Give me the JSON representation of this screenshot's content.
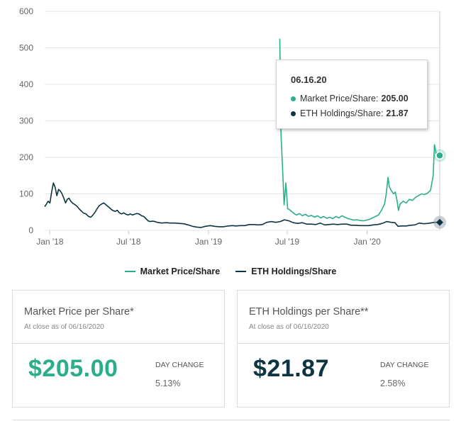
{
  "chart_data": {
    "type": "line",
    "title": "",
    "xlabel": "",
    "ylabel": "",
    "ylim": [
      0,
      600
    ],
    "yticks": [
      0,
      100,
      200,
      300,
      400,
      500,
      600
    ],
    "xlim": [
      "2017-12-20",
      "2020-06-16"
    ],
    "xticks": [
      {
        "label": "Jan '18",
        "date": "2018-01-01"
      },
      {
        "label": "Jul '18",
        "date": "2018-07-01"
      },
      {
        "label": "Jan '19",
        "date": "2019-01-01"
      },
      {
        "label": "Jul '19",
        "date": "2019-07-01"
      },
      {
        "label": "Jan '20",
        "date": "2020-01-01"
      }
    ],
    "grid": "horizontal",
    "legend_position": "bottom",
    "series": [
      {
        "name": "Market Price/Share",
        "color": "#2bae8a",
        "points": [
          [
            "2019-06-14",
            525
          ],
          [
            "2019-06-17",
            260
          ],
          [
            "2019-06-20",
            180
          ],
          [
            "2019-06-24",
            70
          ],
          [
            "2019-06-28",
            130
          ],
          [
            "2019-07-02",
            60
          ],
          [
            "2019-07-08",
            55
          ],
          [
            "2019-07-15",
            48
          ],
          [
            "2019-07-22",
            42
          ],
          [
            "2019-07-29",
            46
          ],
          [
            "2019-08-05",
            40
          ],
          [
            "2019-08-12",
            44
          ],
          [
            "2019-08-19",
            38
          ],
          [
            "2019-08-26",
            41
          ],
          [
            "2019-09-02",
            36
          ],
          [
            "2019-09-09",
            40
          ],
          [
            "2019-09-16",
            34
          ],
          [
            "2019-09-23",
            38
          ],
          [
            "2019-09-30",
            33
          ],
          [
            "2019-10-07",
            36
          ],
          [
            "2019-10-14",
            32
          ],
          [
            "2019-10-21",
            38
          ],
          [
            "2019-10-28",
            34
          ],
          [
            "2019-11-04",
            40
          ],
          [
            "2019-11-11",
            36
          ],
          [
            "2019-11-18",
            32
          ],
          [
            "2019-11-25",
            30
          ],
          [
            "2019-12-02",
            28
          ],
          [
            "2019-12-09",
            29
          ],
          [
            "2019-12-16",
            27
          ],
          [
            "2019-12-23",
            26
          ],
          [
            "2019-12-30",
            28
          ],
          [
            "2020-01-06",
            30
          ],
          [
            "2020-01-13",
            34
          ],
          [
            "2020-01-20",
            38
          ],
          [
            "2020-01-27",
            42
          ],
          [
            "2020-02-03",
            55
          ],
          [
            "2020-02-10",
            72
          ],
          [
            "2020-02-14",
            100
          ],
          [
            "2020-02-18",
            145
          ],
          [
            "2020-02-21",
            120
          ],
          [
            "2020-02-25",
            110
          ],
          [
            "2020-03-02",
            100
          ],
          [
            "2020-03-06",
            105
          ],
          [
            "2020-03-10",
            80
          ],
          [
            "2020-03-13",
            55
          ],
          [
            "2020-03-17",
            72
          ],
          [
            "2020-03-24",
            80
          ],
          [
            "2020-03-31",
            75
          ],
          [
            "2020-04-07",
            85
          ],
          [
            "2020-04-14",
            82
          ],
          [
            "2020-04-21",
            90
          ],
          [
            "2020-04-28",
            95
          ],
          [
            "2020-05-05",
            100
          ],
          [
            "2020-05-12",
            98
          ],
          [
            "2020-05-19",
            102
          ],
          [
            "2020-05-26",
            110
          ],
          [
            "2020-06-01",
            150
          ],
          [
            "2020-06-04",
            235
          ],
          [
            "2020-06-08",
            210
          ],
          [
            "2020-06-12",
            200
          ],
          [
            "2020-06-16",
            205
          ]
        ]
      },
      {
        "name": "ETH Holdings/Share",
        "color": "#0d3440",
        "points": [
          [
            "2017-12-20",
            65
          ],
          [
            "2017-12-24",
            72
          ],
          [
            "2017-12-28",
            80
          ],
          [
            "2018-01-01",
            75
          ],
          [
            "2018-01-05",
            105
          ],
          [
            "2018-01-09",
            130
          ],
          [
            "2018-01-13",
            118
          ],
          [
            "2018-01-17",
            95
          ],
          [
            "2018-01-21",
            112
          ],
          [
            "2018-01-25",
            108
          ],
          [
            "2018-01-29",
            100
          ],
          [
            "2018-02-02",
            88
          ],
          [
            "2018-02-06",
            75
          ],
          [
            "2018-02-10",
            85
          ],
          [
            "2018-02-14",
            88
          ],
          [
            "2018-02-18",
            80
          ],
          [
            "2018-02-22",
            75
          ],
          [
            "2018-02-28",
            70
          ],
          [
            "2018-03-05",
            65
          ],
          [
            "2018-03-10",
            58
          ],
          [
            "2018-03-15",
            52
          ],
          [
            "2018-03-20",
            47
          ],
          [
            "2018-03-25",
            45
          ],
          [
            "2018-03-31",
            38
          ],
          [
            "2018-04-05",
            36
          ],
          [
            "2018-04-10",
            42
          ],
          [
            "2018-04-15",
            50
          ],
          [
            "2018-04-20",
            60
          ],
          [
            "2018-04-25",
            68
          ],
          [
            "2018-04-30",
            72
          ],
          [
            "2018-05-05",
            75
          ],
          [
            "2018-05-10",
            70
          ],
          [
            "2018-05-15",
            65
          ],
          [
            "2018-05-20",
            60
          ],
          [
            "2018-05-25",
            55
          ],
          [
            "2018-05-31",
            52
          ],
          [
            "2018-06-05",
            55
          ],
          [
            "2018-06-10",
            48
          ],
          [
            "2018-06-15",
            45
          ],
          [
            "2018-06-20",
            48
          ],
          [
            "2018-06-25",
            44
          ],
          [
            "2018-06-30",
            42
          ],
          [
            "2018-07-05",
            45
          ],
          [
            "2018-07-10",
            42
          ],
          [
            "2018-07-15",
            44
          ],
          [
            "2018-07-20",
            46
          ],
          [
            "2018-07-25",
            45
          ],
          [
            "2018-07-31",
            40
          ],
          [
            "2018-08-05",
            38
          ],
          [
            "2018-08-10",
            32
          ],
          [
            "2018-08-15",
            26
          ],
          [
            "2018-08-20",
            24
          ],
          [
            "2018-08-25",
            25
          ],
          [
            "2018-08-31",
            24
          ],
          [
            "2018-09-05",
            22
          ],
          [
            "2018-09-15",
            20
          ],
          [
            "2018-09-25",
            21
          ],
          [
            "2018-10-05",
            20
          ],
          [
            "2018-10-15",
            20
          ],
          [
            "2018-10-25",
            19
          ],
          [
            "2018-11-05",
            18
          ],
          [
            "2018-11-15",
            15
          ],
          [
            "2018-11-25",
            11
          ],
          [
            "2018-12-05",
            9
          ],
          [
            "2018-12-15",
            8
          ],
          [
            "2018-12-25",
            11
          ],
          [
            "2019-01-05",
            13
          ],
          [
            "2019-01-15",
            11
          ],
          [
            "2019-01-25",
            10
          ],
          [
            "2019-02-05",
            10
          ],
          [
            "2019-02-15",
            12
          ],
          [
            "2019-02-25",
            13
          ],
          [
            "2019-03-05",
            12
          ],
          [
            "2019-03-15",
            13
          ],
          [
            "2019-03-25",
            13
          ],
          [
            "2019-04-05",
            16
          ],
          [
            "2019-04-15",
            16
          ],
          [
            "2019-04-25",
            15
          ],
          [
            "2019-05-05",
            16
          ],
          [
            "2019-05-15",
            22
          ],
          [
            "2019-05-25",
            24
          ],
          [
            "2019-06-05",
            22
          ],
          [
            "2019-06-15",
            24
          ],
          [
            "2019-06-25",
            29
          ],
          [
            "2019-07-05",
            26
          ],
          [
            "2019-07-15",
            21
          ],
          [
            "2019-07-25",
            19
          ],
          [
            "2019-08-05",
            21
          ],
          [
            "2019-08-15",
            17
          ],
          [
            "2019-08-25",
            17
          ],
          [
            "2019-09-05",
            16
          ],
          [
            "2019-09-15",
            20
          ],
          [
            "2019-09-25",
            15
          ],
          [
            "2019-10-05",
            16
          ],
          [
            "2019-10-15",
            17
          ],
          [
            "2019-10-25",
            16
          ],
          [
            "2019-11-05",
            17
          ],
          [
            "2019-11-15",
            17
          ],
          [
            "2019-11-25",
            14
          ],
          [
            "2019-12-05",
            14
          ],
          [
            "2019-12-15",
            13
          ],
          [
            "2019-12-25",
            13
          ],
          [
            "2020-01-05",
            13
          ],
          [
            "2020-01-15",
            15
          ],
          [
            "2020-01-25",
            16
          ],
          [
            "2020-02-05",
            19
          ],
          [
            "2020-02-15",
            24
          ],
          [
            "2020-02-25",
            22
          ],
          [
            "2020-03-05",
            21
          ],
          [
            "2020-03-12",
            11
          ],
          [
            "2020-03-20",
            12
          ],
          [
            "2020-03-31",
            12
          ],
          [
            "2020-04-10",
            14
          ],
          [
            "2020-04-20",
            15
          ],
          [
            "2020-04-30",
            20
          ],
          [
            "2020-05-10",
            18
          ],
          [
            "2020-05-20",
            19
          ],
          [
            "2020-05-30",
            21
          ],
          [
            "2020-06-05",
            22
          ],
          [
            "2020-06-10",
            22
          ],
          [
            "2020-06-16",
            21.87
          ]
        ]
      }
    ],
    "highlight": {
      "date": "2020-06-16",
      "market_price": 205.0,
      "eth_holdings": 21.87
    }
  },
  "tooltip": {
    "date": "06.16.20",
    "rows": [
      {
        "label": "Market Price/Share:",
        "value": "205.00",
        "color": "#2bae8a"
      },
      {
        "label": "ETH Holdings/Share:",
        "value": "21.87",
        "color": "#0d3440"
      }
    ]
  },
  "legend": [
    {
      "label": "Market Price/Share",
      "color": "#2bae8a"
    },
    {
      "label": "ETH Holdings/Share",
      "color": "#0d3440"
    }
  ],
  "cards": [
    {
      "title": "Market Price per Share*",
      "subtitle": "At close as of 06/16/2020",
      "value": "$205.00",
      "value_color": "#2bae8a",
      "day_change_label": "DAY CHANGE",
      "day_change": "5.13%"
    },
    {
      "title": "ETH Holdings per Share**",
      "subtitle": "At close as of 06/16/2020",
      "value": "$21.87",
      "value_color": "#0d3440",
      "day_change_label": "DAY CHANGE",
      "day_change": "2.58%"
    }
  ]
}
